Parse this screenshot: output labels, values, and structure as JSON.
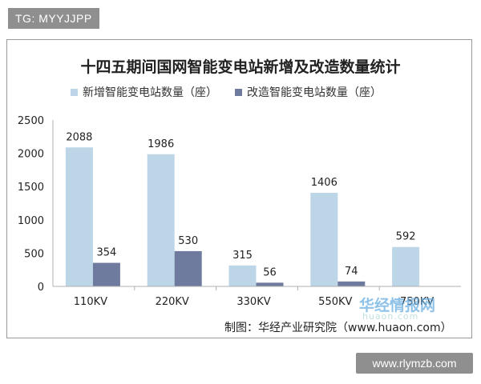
{
  "tag_text": "TG: MYYJJPP",
  "site_text": "www.rlymzb.com",
  "watermark": {
    "name": "华经情报网",
    "url": "huaon.com"
  },
  "colors": {
    "new": "#bcd6e8",
    "renovate": "#6f7b9e",
    "axis": "#b0b0b0"
  },
  "chart_data": {
    "type": "bar",
    "title": "十四五期间国网智能变电站新增及改造数量统计",
    "categories": [
      "110KV",
      "220KV",
      "330KV",
      "550KV",
      "750KV"
    ],
    "series": [
      {
        "name": "新增智能变电站数量（座）",
        "values": [
          2088,
          1986,
          315,
          1406,
          592
        ]
      },
      {
        "name": "改造智能变电站数量（座）",
        "values": [
          354,
          530,
          56,
          74,
          null
        ]
      }
    ],
    "yticks": [
      0,
      500,
      1000,
      1500,
      2000,
      2500
    ],
    "ylim": [
      0,
      2500
    ],
    "grid": false,
    "legend": "top",
    "source": "制图：华经产业研究院（www.huaon.com）"
  }
}
